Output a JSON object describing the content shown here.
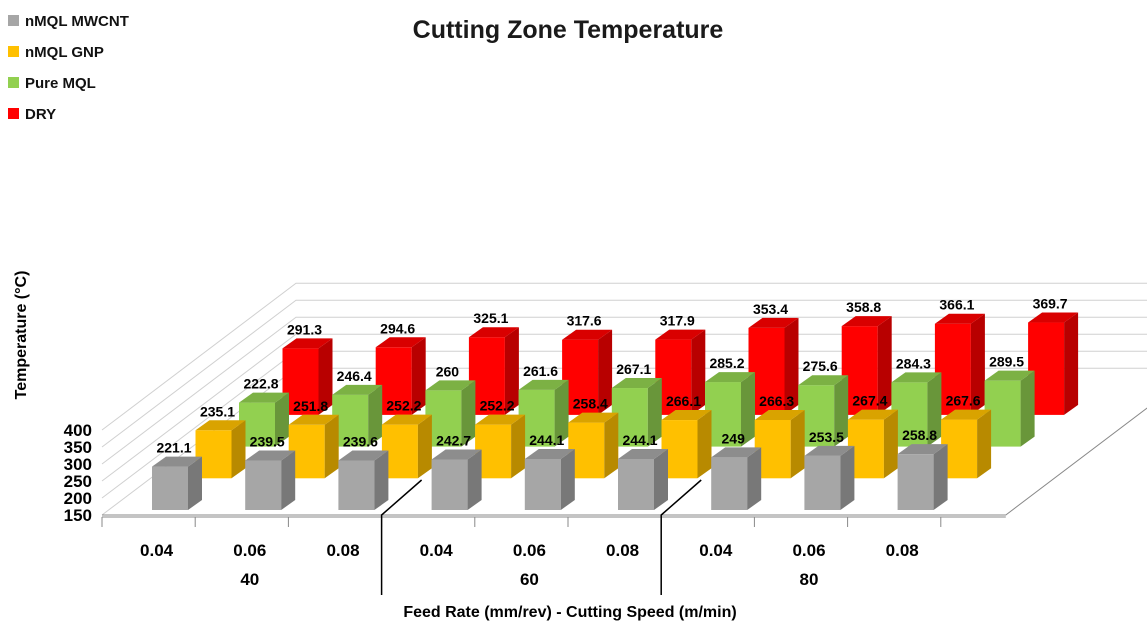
{
  "chart_data": {
    "type": "bar",
    "title": "Cutting Zone Temperature",
    "xlabel": "Feed Rate (mm/rev) - Cutting Speed (m/min)",
    "ylabel": "Temperature (°C)",
    "ylim": [
      150,
      400
    ],
    "yticks": [
      "150",
      "200",
      "250",
      "300",
      "350",
      "400"
    ],
    "categories": [
      "0.04",
      "0.06",
      "0.08",
      "0.04",
      "0.06",
      "0.08",
      "0.04",
      "0.06",
      "0.08"
    ],
    "groups": [
      {
        "label": "40",
        "span": [
          0,
          2
        ]
      },
      {
        "label": "60",
        "span": [
          3,
          5
        ]
      },
      {
        "label": "80",
        "span": [
          6,
          8
        ]
      }
    ],
    "legend_position": "top-left",
    "series": [
      {
        "name": "nMQL MWCNT",
        "color": "#a6a6a6",
        "values": [
          221.1,
          239.5,
          239.6,
          242.7,
          244.1,
          244.1,
          249,
          253.5,
          258.8
        ]
      },
      {
        "name": "nMQL GNP",
        "color": "#ffc000",
        "values": [
          235.1,
          251.8,
          252.2,
          252.2,
          258.4,
          266.1,
          266.3,
          267.4,
          267.6
        ]
      },
      {
        "name": "Pure MQL",
        "color": "#92d050",
        "values": [
          222.8,
          246.4,
          260,
          261.6,
          267.1,
          285.2,
          275.6,
          284.3,
          289.5
        ]
      },
      {
        "name": "DRY",
        "color": "#ff0000",
        "values": [
          291.3,
          294.6,
          325.1,
          317.6,
          317.9,
          353.4,
          358.8,
          366.1,
          369.7
        ]
      }
    ],
    "data_labels": [
      [
        "221.1",
        "239.5",
        "239.6",
        "242.7",
        "244.1",
        "244.1",
        "249",
        "253.5",
        "258.8"
      ],
      [
        "235.1",
        "251.8",
        "252.2",
        "252.2",
        "258.4",
        "266.1",
        "266.3",
        "267.4",
        "267.6"
      ],
      [
        "222.8",
        "246.4",
        "260",
        "261.6",
        "267.1",
        "285.2",
        "275.6",
        "284.3",
        "289.5"
      ],
      [
        "291.3",
        "294.6",
        "325.1",
        "317.6",
        "317.9",
        "353.4",
        "358.8",
        "366.1",
        "369.7"
      ]
    ],
    "grid": true
  }
}
